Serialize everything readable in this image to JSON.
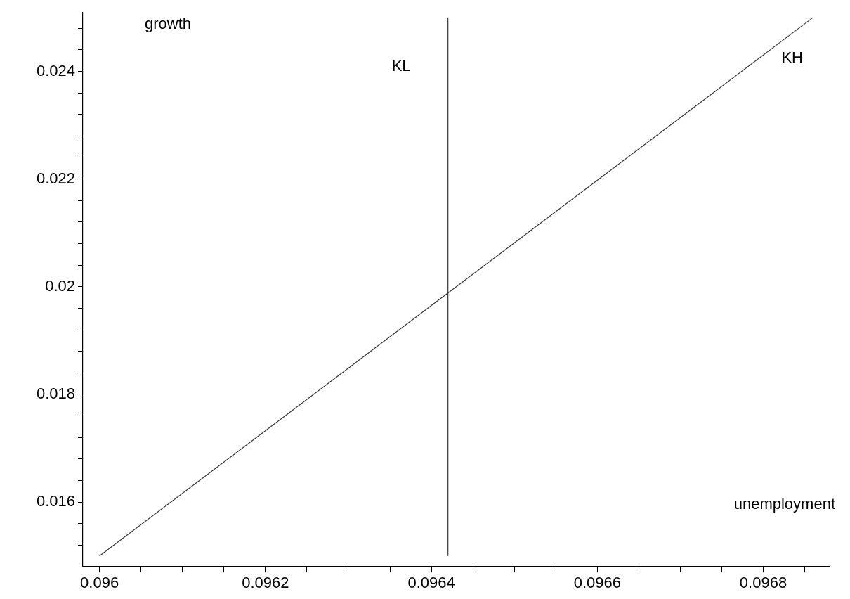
{
  "chart_data": {
    "type": "line",
    "xlabel": "unemployment",
    "ylabel": "growth",
    "series": [
      {
        "name": "KH",
        "color": "#333333",
        "x": [
          0.096,
          0.09686
        ],
        "values": [
          0.015,
          0.025
        ]
      },
      {
        "name": "KL",
        "color": "#333333",
        "x": [
          0.09642,
          0.09642
        ],
        "values": [
          0.015,
          0.025
        ]
      }
    ],
    "xlim": [
      0.09598,
      0.09688
    ],
    "xticks": [
      0.096,
      {
        "value": 0.09605,
        "label": null
      },
      {
        "value": 0.0961,
        "label": null
      },
      {
        "value": 0.09615,
        "label": null
      },
      0.0962,
      {
        "value": 0.09625,
        "label": null
      },
      {
        "value": 0.0963,
        "label": null
      },
      {
        "value": 0.09635,
        "label": null
      },
      0.0964,
      {
        "value": 0.09645,
        "label": null
      },
      {
        "value": 0.0965,
        "label": null
      },
      {
        "value": 0.09655,
        "label": null
      },
      0.0966,
      {
        "value": 0.09665,
        "label": null
      },
      {
        "value": 0.0967,
        "label": null
      },
      {
        "value": 0.09675,
        "label": null
      },
      0.0968,
      {
        "value": 0.09685,
        "label": null
      }
    ],
    "ylim": [
      0.0148,
      0.0251
    ],
    "yticks": [
      {
        "value": 0.0152,
        "label": null
      },
      {
        "value": 0.0156,
        "label": null
      },
      0.016,
      {
        "value": 0.0164,
        "label": null
      },
      {
        "value": 0.0168,
        "label": null
      },
      {
        "value": 0.0172,
        "label": null
      },
      {
        "value": 0.0176,
        "label": null
      },
      0.018,
      {
        "value": 0.0184,
        "label": null
      },
      {
        "value": 0.0188,
        "label": null
      },
      {
        "value": 0.0192,
        "label": null
      },
      {
        "value": 0.0196,
        "label": null
      },
      0.02,
      {
        "value": 0.0204,
        "label": null
      },
      {
        "value": 0.0208,
        "label": null
      },
      {
        "value": 0.0212,
        "label": null
      },
      {
        "value": 0.0216,
        "label": null
      },
      0.022,
      {
        "value": 0.0224,
        "label": null
      },
      {
        "value": 0.0228,
        "label": null
      },
      {
        "value": 0.0232,
        "label": null
      },
      {
        "value": 0.0236,
        "label": null
      },
      0.024,
      {
        "value": 0.0244,
        "label": null
      },
      {
        "value": 0.0248,
        "label": null
      }
    ],
    "grid": false,
    "legend": false,
    "marker": "none",
    "line_style": "solid"
  }
}
